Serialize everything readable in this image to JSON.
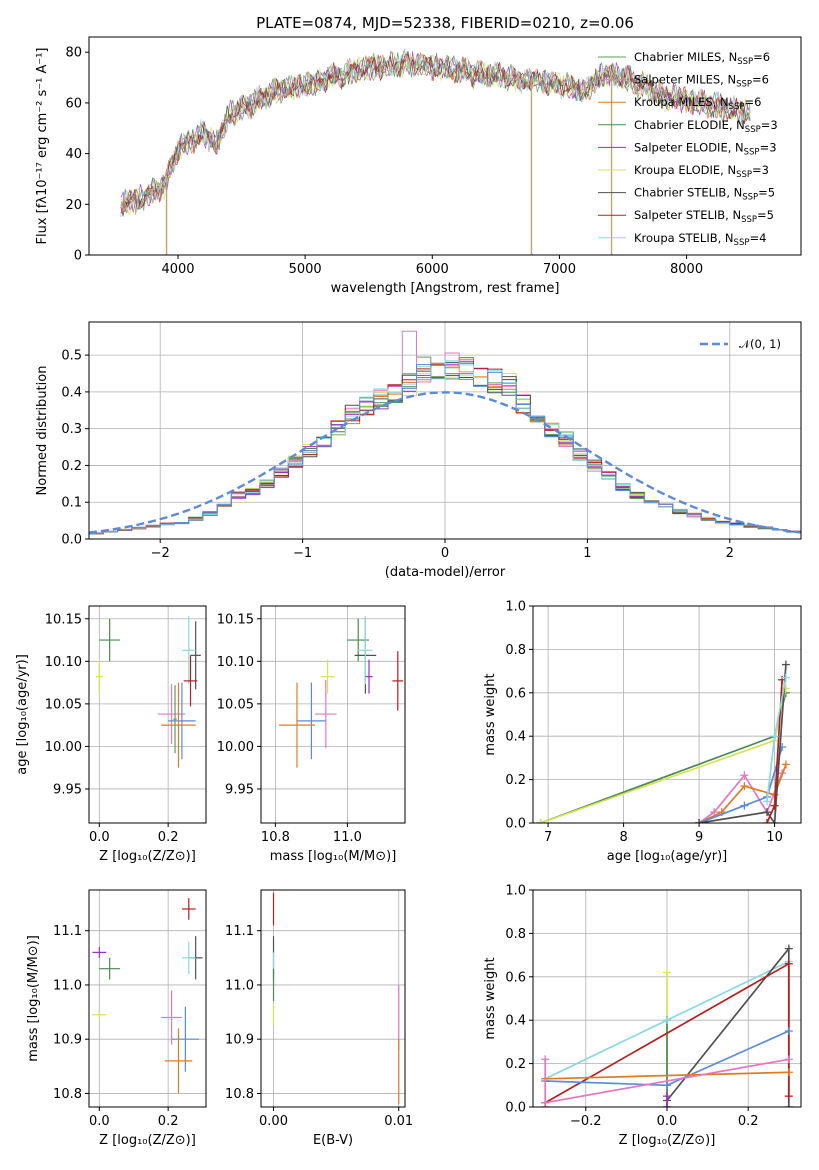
{
  "colors": {
    "Chabrier MILES": "#5aa05a",
    "Salpeter MILES": "#e377c2",
    "Kroupa MILES": "#e07b22",
    "Chabrier ELODIE": "#4a8a50",
    "Salpeter ELODIE": "#9b30c0",
    "Kroupa ELODIE": "#d4e35a",
    "Chabrier STELIB": "#505050",
    "Salpeter STELIB": "#b22020",
    "Kroupa STELIB": "#8ad8e0",
    "gauss": "#5b8bd6",
    "extra_blue": "#5b8bd6"
  },
  "chart_data": [
    {
      "type": "line",
      "title": "PLATE=0874, MJD=52338, FIBERID=0210, z=0.06",
      "xlabel": "wavelength [Angstrom, rest frame]",
      "ylabel": "Flux [fλ10⁻¹⁷ erg cm⁻² s⁻¹ A⁻¹]",
      "xlim": [
        3300,
        8900
      ],
      "ylim": [
        0,
        86
      ],
      "xticks": [
        4000,
        5000,
        6000,
        7000,
        8000
      ],
      "yticks": [
        0,
        20,
        40,
        60,
        80
      ],
      "legend": [
        {
          "label": "Chabrier MILES, N",
          "sub": "SSP",
          "tail": "=6",
          "color_key": "Chabrier MILES"
        },
        {
          "label": "Salpeter MILES, N",
          "sub": "SSP",
          "tail": "=6",
          "color_key": "Salpeter MILES"
        },
        {
          "label": "Kroupa MILES, N",
          "sub": "SSP",
          "tail": "=6",
          "color_key": "Kroupa MILES"
        },
        {
          "label": "Chabrier ELODIE, N",
          "sub": "SSP",
          "tail": "=3",
          "color_key": "Chabrier ELODIE"
        },
        {
          "label": "Salpeter ELODIE, N",
          "sub": "SSP",
          "tail": "=3",
          "color_key": "Salpeter ELODIE"
        },
        {
          "label": "Kroupa ELODIE, N",
          "sub": "SSP",
          "tail": "=3",
          "color_key": "Kroupa ELODIE"
        },
        {
          "label": "Chabrier STELIB, N",
          "sub": "SSP",
          "tail": "=5",
          "color_key": "Chabrier STELIB"
        },
        {
          "label": "Salpeter STELIB, N",
          "sub": "SSP",
          "tail": "=5",
          "color_key": "Salpeter STELIB"
        },
        {
          "label": "Kroupa STELIB, N",
          "sub": "SSP",
          "tail": "=4",
          "color_key": "Kroupa STELIB"
        }
      ],
      "legend_position": "top-right",
      "spectrum_envelope": {
        "x": [
          3550,
          3700,
          3800,
          3900,
          3950,
          4000,
          4100,
          4200,
          4300,
          4400,
          4500,
          4600,
          4700,
          4800,
          4900,
          5000,
          5100,
          5200,
          5300,
          5400,
          5500,
          5600,
          5700,
          5800,
          5900,
          6000,
          6100,
          6200,
          6300,
          6400,
          6500,
          6600,
          6700,
          6800,
          6900,
          7000,
          7100,
          7200,
          7300,
          7400,
          7500,
          7600,
          7700,
          7800,
          7900,
          8000,
          8100,
          8200,
          8300,
          8400,
          8500
        ],
        "y": [
          20,
          22,
          25,
          28,
          35,
          42,
          45,
          48,
          44,
          55,
          58,
          60,
          63,
          65,
          66,
          67,
          68,
          70,
          71,
          73,
          74,
          74,
          75,
          76,
          75,
          74,
          74,
          73,
          72,
          71,
          71,
          70,
          69,
          69,
          68,
          67,
          66,
          64,
          70,
          71,
          70,
          68,
          66,
          63,
          62,
          61,
          60,
          59,
          58,
          57,
          56
        ]
      },
      "spikes": [
        {
          "x": 3910,
          "y": 0
        },
        {
          "x": 6780,
          "y": 0
        },
        {
          "x": 7410,
          "y": 0
        }
      ]
    },
    {
      "type": "histogram",
      "xlabel": "(data-model)/error",
      "ylabel": "Normed distribution",
      "xlim": [
        -2.5,
        2.5
      ],
      "ylim": [
        0,
        0.59
      ],
      "xticks": [
        -2,
        -1,
        0,
        1,
        2
      ],
      "yticks": [
        0.0,
        0.1,
        0.2,
        0.3,
        0.4,
        0.5
      ],
      "bin_edges": [
        -2.5,
        -2.4,
        -2.3,
        -2.2,
        -2.1,
        -2.0,
        -1.9,
        -1.8,
        -1.7,
        -1.6,
        -1.5,
        -1.4,
        -1.3,
        -1.2,
        -1.1,
        -1.0,
        -0.9,
        -0.8,
        -0.7,
        -0.6,
        -0.5,
        -0.4,
        -0.3,
        -0.2,
        -0.1,
        0.0,
        0.1,
        0.2,
        0.3,
        0.4,
        0.5,
        0.6,
        0.7,
        0.8,
        0.9,
        1.0,
        1.1,
        1.2,
        1.3,
        1.4,
        1.5,
        1.6,
        1.7,
        1.8,
        1.9,
        2.0,
        2.1,
        2.2,
        2.3,
        2.4,
        2.5
      ],
      "base_counts": [
        0.015,
        0.02,
        0.025,
        0.03,
        0.035,
        0.04,
        0.045,
        0.055,
        0.07,
        0.09,
        0.12,
        0.13,
        0.15,
        0.18,
        0.21,
        0.24,
        0.27,
        0.3,
        0.34,
        0.36,
        0.38,
        0.4,
        0.42,
        0.46,
        0.47,
        0.47,
        0.46,
        0.44,
        0.43,
        0.42,
        0.37,
        0.33,
        0.3,
        0.27,
        0.23,
        0.2,
        0.17,
        0.14,
        0.12,
        0.1,
        0.09,
        0.075,
        0.065,
        0.055,
        0.045,
        0.04,
        0.035,
        0.03,
        0.025,
        0.02
      ],
      "gauss_label": "𝒩(0, 1)",
      "legend_position": "top-right"
    },
    {
      "type": "errorbar",
      "xlabel": "Z [log₁₀(Z/Z⊙)]",
      "ylabel": "age  [log₁₀(age/yr)]",
      "xlim": [
        -0.03,
        0.31
      ],
      "ylim": [
        9.91,
        10.165
      ],
      "xticks": [
        0.0,
        0.2
      ],
      "xticklabels": [
        "0.0",
        "0.2"
      ],
      "yticks": [
        9.95,
        10.0,
        10.05,
        10.1,
        10.15
      ],
      "points": [
        {
          "c": "Chabrier ELODIE",
          "x": 0.03,
          "y": 10.125,
          "xe": 0.03,
          "ye": 0.025
        },
        {
          "c": "Kroupa ELODIE",
          "x": 0.0,
          "y": 10.082,
          "xe": 0.01,
          "ye": 0.02
        },
        {
          "c": "Chabrier STELIB",
          "x": 0.28,
          "y": 10.107,
          "xe": 0.015,
          "ye": 0.04
        },
        {
          "c": "Kroupa STELIB",
          "x": 0.26,
          "y": 10.113,
          "xe": 0.02,
          "ye": 0.04
        },
        {
          "c": "Salpeter STELIB",
          "x": 0.265,
          "y": 10.077,
          "xe": 0.02,
          "ye": 0.03
        },
        {
          "c": "Salpeter MILES",
          "x": 0.21,
          "y": 10.038,
          "xe": 0.04,
          "ye": 0.035
        },
        {
          "c": "extra_blue",
          "x": 0.24,
          "y": 10.03,
          "xe": 0.04,
          "ye": 0.045
        },
        {
          "c": "Kroupa MILES",
          "x": 0.23,
          "y": 10.025,
          "xe": 0.05,
          "ye": 0.05
        },
        {
          "c": "Chabrier MILES",
          "x": 0.22,
          "y": 10.032,
          "xe": 0.005,
          "ye": 0.04
        }
      ]
    },
    {
      "type": "errorbar",
      "xlabel": "mass [log₁₀(M/M⊙)]",
      "ylabel": "",
      "xlim": [
        10.76,
        11.16
      ],
      "ylim": [
        9.91,
        10.165
      ],
      "xticks": [
        10.8,
        11.0
      ],
      "xticklabels": [
        "10.8",
        "11.0"
      ],
      "yticks": [
        9.95,
        10.0,
        10.05,
        10.1,
        10.15
      ],
      "points": [
        {
          "c": "Chabrier ELODIE",
          "x": 11.03,
          "y": 10.125,
          "xe": 0.03,
          "ye": 0.025
        },
        {
          "c": "Kroupa ELODIE",
          "x": 10.945,
          "y": 10.082,
          "xe": 0.02,
          "ye": 0.02
        },
        {
          "c": "Chabrier STELIB",
          "x": 11.05,
          "y": 10.107,
          "xe": 0.03,
          "ye": 0.045
        },
        {
          "c": "Kroupa STELIB",
          "x": 11.05,
          "y": 10.113,
          "xe": 0.02,
          "ye": 0.04
        },
        {
          "c": "Salpeter ELODIE",
          "x": 11.06,
          "y": 10.082,
          "xe": 0.01,
          "ye": 0.02
        },
        {
          "c": "Salpeter STELIB",
          "x": 11.14,
          "y": 10.077,
          "xe": 0.015,
          "ye": 0.035
        },
        {
          "c": "Salpeter MILES",
          "x": 10.94,
          "y": 10.038,
          "xe": 0.03,
          "ye": 0.04
        },
        {
          "c": "extra_blue",
          "x": 10.9,
          "y": 10.03,
          "xe": 0.04,
          "ye": 0.045
        },
        {
          "c": "Kroupa MILES",
          "x": 10.86,
          "y": 10.025,
          "xe": 0.05,
          "ye": 0.05
        }
      ]
    },
    {
      "type": "line",
      "xlabel": "age  [log₁₀(age/yr)]",
      "ylabel": "mass weight",
      "xlim": [
        6.8,
        10.35
      ],
      "ylim": [
        0,
        1.0
      ],
      "xticks": [
        7,
        8,
        9,
        10
      ],
      "yticks": [
        0.0,
        0.2,
        0.4,
        0.6,
        0.8,
        1.0
      ],
      "yticklabels": [
        "0.0",
        "0.2",
        "0.4",
        "0.6",
        "0.8",
        "1.0"
      ],
      "series": [
        {
          "c": "Chabrier ELODIE",
          "x": [
            6.9,
            10.0,
            10.15
          ],
          "y": [
            0.0,
            0.4,
            0.6
          ]
        },
        {
          "c": "Kroupa ELODIE",
          "x": [
            6.9,
            10.0,
            10.15
          ],
          "y": [
            0.0,
            0.38,
            0.62
          ]
        },
        {
          "c": "Salpeter MILES",
          "x": [
            9.0,
            9.2,
            9.6,
            9.9,
            10.1
          ],
          "y": [
            0.0,
            0.05,
            0.22,
            0.05,
            0.23
          ]
        },
        {
          "c": "Kroupa MILES",
          "x": [
            9.0,
            9.3,
            9.6,
            10.0,
            10.15
          ],
          "y": [
            0.0,
            0.05,
            0.17,
            0.13,
            0.27
          ]
        },
        {
          "c": "extra_blue",
          "x": [
            9.0,
            9.6,
            9.9,
            10.1
          ],
          "y": [
            0.0,
            0.08,
            0.12,
            0.35
          ]
        },
        {
          "c": "Chabrier STELIB",
          "x": [
            9.0,
            9.9,
            10.0,
            10.15
          ],
          "y": [
            0.0,
            0.05,
            0.0,
            0.73
          ]
        },
        {
          "c": "Salpeter STELIB",
          "x": [
            9.9,
            10.0,
            10.1
          ],
          "y": [
            0.0,
            0.08,
            0.66
          ]
        },
        {
          "c": "Kroupa STELIB",
          "x": [
            9.9,
            10.0,
            10.15
          ],
          "y": [
            0.1,
            0.4,
            0.67
          ]
        }
      ]
    },
    {
      "type": "errorbar",
      "xlabel": "Z [log₁₀(Z/Z⊙)]",
      "ylabel": "mass [log₁₀(M/M⊙)]",
      "xlim": [
        -0.03,
        0.31
      ],
      "ylim": [
        10.775,
        11.175
      ],
      "xticks": [
        0.0,
        0.2
      ],
      "xticklabels": [
        "0.0",
        "0.2"
      ],
      "yticks": [
        10.8,
        10.9,
        11.0,
        11.1
      ],
      "points": [
        {
          "c": "Salpeter STELIB",
          "x": 0.26,
          "y": 11.14,
          "xe": 0.02,
          "ye": 0.02
        },
        {
          "c": "Salpeter ELODIE",
          "x": 0.0,
          "y": 11.06,
          "xe": 0.02,
          "ye": 0.01
        },
        {
          "c": "Chabrier ELODIE",
          "x": 0.03,
          "y": 11.03,
          "xe": 0.03,
          "ye": 0.02
        },
        {
          "c": "Chabrier STELIB",
          "x": 0.28,
          "y": 11.05,
          "xe": 0.02,
          "ye": 0.04
        },
        {
          "c": "Kroupa STELIB",
          "x": 0.26,
          "y": 11.05,
          "xe": 0.02,
          "ye": 0.03
        },
        {
          "c": "Kroupa ELODIE",
          "x": 0.0,
          "y": 10.945,
          "xe": 0.02,
          "ye": 0.01
        },
        {
          "c": "Salpeter MILES",
          "x": 0.21,
          "y": 10.94,
          "xe": 0.03,
          "ye": 0.05
        },
        {
          "c": "extra_blue",
          "x": 0.25,
          "y": 10.9,
          "xe": 0.04,
          "ye": 0.06
        },
        {
          "c": "Kroupa MILES",
          "x": 0.23,
          "y": 10.86,
          "xe": 0.04,
          "ye": 0.06
        }
      ]
    },
    {
      "type": "errorbar",
      "xlabel": "E(B-V)",
      "ylabel": "",
      "xlim": [
        -0.001,
        0.0105
      ],
      "ylim": [
        10.775,
        11.175
      ],
      "xticks": [
        0.0,
        0.01
      ],
      "xticklabels": [
        "0.00",
        "0.01"
      ],
      "yticks": [
        10.8,
        10.9,
        11.0,
        11.1
      ],
      "points": [
        {
          "c": "Salpeter STELIB",
          "x": 0.0,
          "y": 11.14,
          "xe": 0.0,
          "ye": 0.03
        },
        {
          "c": "Chabrier STELIB",
          "x": 0.0,
          "y": 11.05,
          "xe": 0.0,
          "ye": 0.04
        },
        {
          "c": "Kroupa STELIB",
          "x": 0.0,
          "y": 11.03,
          "xe": 0.0,
          "ye": 0.03
        },
        {
          "c": "Chabrier ELODIE",
          "x": 0.0,
          "y": 11.0,
          "xe": 0.0,
          "ye": 0.03
        },
        {
          "c": "Kroupa ELODIE",
          "x": 0.0,
          "y": 10.945,
          "xe": 0.0,
          "ye": 0.02
        },
        {
          "c": "Salpeter MILES",
          "x": 0.01,
          "y": 10.94,
          "xe": 0.0,
          "ye": 0.06
        },
        {
          "c": "Kroupa MILES",
          "x": 0.01,
          "y": 10.84,
          "xe": 0.0,
          "ye": 0.06
        }
      ]
    },
    {
      "type": "line",
      "xlabel": "Z [log₁₀(Z/Z⊙)]",
      "ylabel": "mass weight",
      "xlim": [
        -0.33,
        0.33
      ],
      "ylim": [
        0,
        1.0
      ],
      "xticks": [
        -0.2,
        0.0,
        0.2
      ],
      "xticklabels": [
        "−0.2",
        "0.0",
        "0.2"
      ],
      "yticks": [
        0.0,
        0.2,
        0.4,
        0.6,
        0.8,
        1.0
      ],
      "yticklabels": [
        "0.0",
        "0.2",
        "0.4",
        "0.6",
        "0.8",
        "1.0"
      ],
      "series": [
        {
          "c": "Kroupa ELODIE",
          "x": [
            0.0,
            0.0
          ],
          "y": [
            0.0,
            0.62
          ]
        },
        {
          "c": "Chabrier ELODIE",
          "x": [
            0.0,
            0.0
          ],
          "y": [
            0.0,
            0.4
          ]
        },
        {
          "c": "Kroupa STELIB",
          "x": [
            -0.3,
            0.0,
            0.3,
            0.3
          ],
          "y": [
            0.13,
            0.4,
            0.67,
            0.0
          ]
        },
        {
          "c": "Chabrier STELIB",
          "x": [
            0.0,
            0.3,
            0.3
          ],
          "y": [
            0.03,
            0.73,
            0.0
          ]
        },
        {
          "c": "Salpeter STELIB",
          "x": [
            -0.3,
            -0.3,
            0.3,
            0.3
          ],
          "y": [
            0.0,
            0.02,
            0.66,
            0.05
          ]
        },
        {
          "c": "extra_blue",
          "x": [
            -0.3,
            0.0,
            0.3
          ],
          "y": [
            0.12,
            0.1,
            0.35
          ]
        },
        {
          "c": "Kroupa MILES",
          "x": [
            -0.3,
            0.3
          ],
          "y": [
            0.13,
            0.16
          ]
        },
        {
          "c": "Salpeter MILES",
          "x": [
            -0.3,
            -0.3,
            0.3
          ],
          "y": [
            0.22,
            0.02,
            0.22
          ]
        },
        {
          "c": "Salpeter ELODIE",
          "x": [
            0.0,
            0.0
          ],
          "y": [
            0.0,
            0.05
          ]
        }
      ]
    }
  ]
}
